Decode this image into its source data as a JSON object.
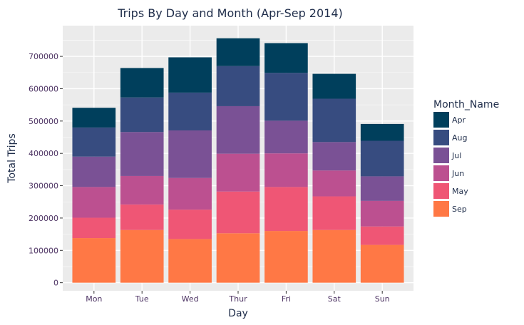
{
  "chart_data": {
    "type": "bar",
    "stacked": true,
    "title": "Trips By Day and Month (Apr-Sep 2014)",
    "xlabel": "Day",
    "ylabel": "Total Trips",
    "categories": [
      "Mon",
      "Tue",
      "Wed",
      "Thur",
      "Fri",
      "Sat",
      "Sun"
    ],
    "yticks": [
      0,
      100000,
      200000,
      300000,
      400000,
      500000,
      600000,
      700000
    ],
    "ytick_labels": [
      "0",
      "100000",
      "200000",
      "300000",
      "400000",
      "500000",
      "600000",
      "700000"
    ],
    "ylim": [
      -25000,
      795000
    ],
    "grid": true,
    "legend_title": "Month_Name",
    "legend_position": "right",
    "series": [
      {
        "name": "Sep",
        "color": "#ff7845",
        "values": [
          138000,
          163000,
          135000,
          153000,
          160000,
          163000,
          117000
        ]
      },
      {
        "name": "May",
        "color": "#ef5675",
        "values": [
          63000,
          79000,
          91000,
          129000,
          136000,
          104000,
          57000
        ]
      },
      {
        "name": "Jun",
        "color": "#bc5090",
        "values": [
          95000,
          88000,
          98000,
          117000,
          104000,
          80000,
          79000
        ]
      },
      {
        "name": "Jul",
        "color": "#7a5195",
        "values": [
          94000,
          136000,
          147000,
          147000,
          101000,
          88000,
          76000
        ]
      },
      {
        "name": "Aug",
        "color": "#374c80",
        "values": [
          90000,
          107000,
          117000,
          124000,
          148000,
          134000,
          110000
        ]
      },
      {
        "name": "Apr",
        "color": "#003f5c",
        "values": [
          61000,
          91000,
          109000,
          86000,
          92000,
          77000,
          52000
        ]
      }
    ],
    "legend_order": [
      "Apr",
      "Aug",
      "Jul",
      "Jun",
      "May",
      "Sep"
    ]
  }
}
